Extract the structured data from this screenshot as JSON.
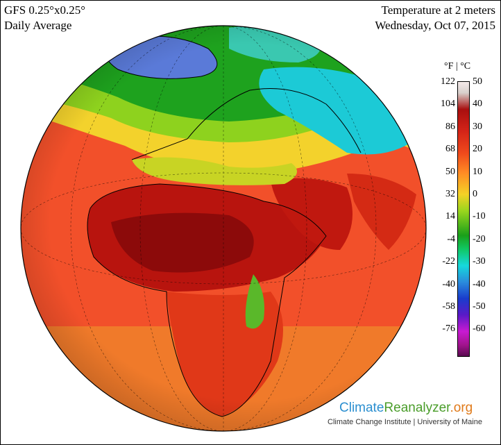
{
  "header": {
    "model": "GFS 0.25°x0.25°",
    "period": "Daily Average",
    "variable": "Temperature at 2 meters",
    "date": "Wednesday, Oct 07, 2015"
  },
  "legend": {
    "units": "°F  |  °C",
    "fahrenheit": [
      "122",
      "104",
      "86",
      "68",
      "50",
      "32",
      "14",
      "-4",
      "-22",
      "-40",
      "-58",
      "-76"
    ],
    "celsius": [
      "50",
      "40",
      "30",
      "20",
      "10",
      "0",
      "-10",
      "-20",
      "-30",
      "-40",
      "-50",
      "-60"
    ]
  },
  "branding": {
    "part1": "Climate",
    "part2": "Reanalyzer",
    "part3": ".org",
    "subtitle": "Climate Change Institute | University of Maine"
  },
  "colors": {
    "hot_dark": "#8c0a0a",
    "hot": "#e8301c",
    "warm": "#ff7a22",
    "mild": "#f2d22a",
    "cool": "#2aa82a",
    "cold": "#24d0d8",
    "polar": "#4a6ad8",
    "border": "#000000"
  }
}
